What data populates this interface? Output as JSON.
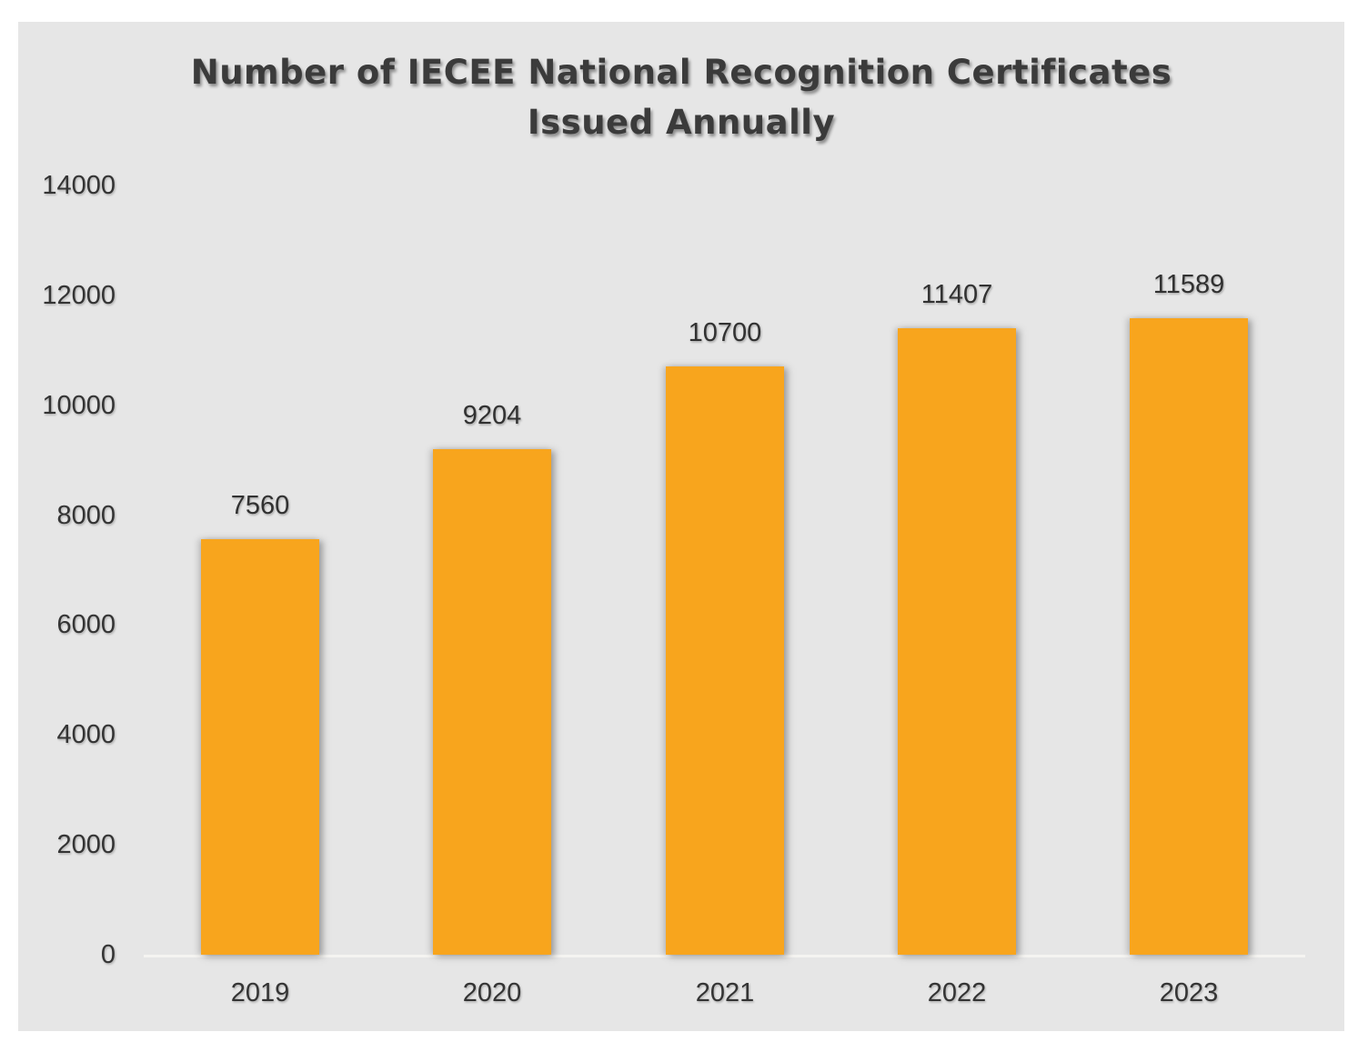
{
  "header": {
    "title_line1": "Number of IECEE National Recognition Certificates",
    "title_line2": "Issued Annually"
  },
  "chart_data": {
    "type": "bar",
    "title": "Number of IECEE National Recognition Certificates Issued Annually",
    "categories": [
      "2019",
      "2020",
      "2021",
      "2022",
      "2023"
    ],
    "values": [
      7560,
      9204,
      10700,
      11407,
      11589
    ],
    "data_labels": [
      "7560",
      "9204",
      "10700",
      "11407",
      "11589"
    ],
    "xlabel": "",
    "ylabel": "",
    "ylim": [
      0,
      14000
    ],
    "yticks": [
      0,
      2000,
      4000,
      6000,
      8000,
      10000,
      12000,
      14000
    ],
    "ytick_labels": [
      "0",
      "2000",
      "4000",
      "6000",
      "8000",
      "10000",
      "12000",
      "14000"
    ],
    "grid": false,
    "legend": false,
    "bar_color": "#F8A51D",
    "panel_background": "#E6E6E6",
    "page_background": "#FFFFFF",
    "axis_line_color": "#F5F4F1",
    "text_color": "#343434",
    "title_color": "#3B3B3B"
  }
}
